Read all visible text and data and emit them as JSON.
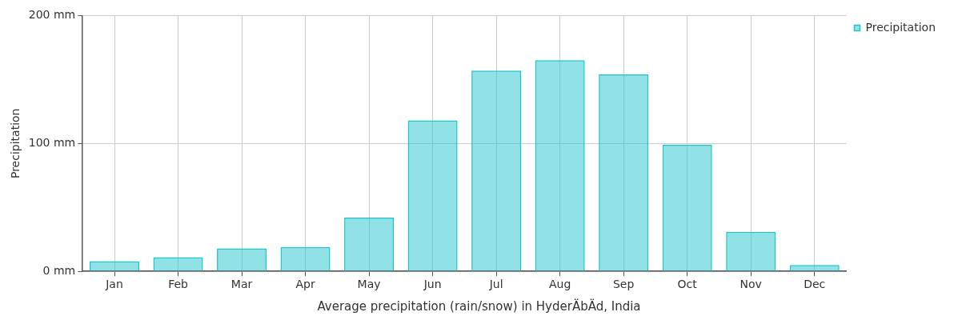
{
  "chart_data": {
    "type": "bar",
    "ylabel": "Precipitation",
    "categories": [
      "Jan",
      "Feb",
      "Mar",
      "Apr",
      "May",
      "Jun",
      "Jul",
      "Aug",
      "Sep",
      "Oct",
      "Nov",
      "Dec"
    ],
    "series": [
      {
        "name": "Precipitation",
        "color": "#20c4cc",
        "values": [
          8,
          11,
          18,
          19,
          42,
          118,
          157,
          165,
          154,
          99,
          31,
          5
        ]
      }
    ],
    "ylim": [
      0,
      200
    ],
    "yticks": [
      {
        "value": 0,
        "label": "0 mm"
      },
      {
        "value": 100,
        "label": "100 mm"
      },
      {
        "value": 200,
        "label": "200 mm"
      }
    ],
    "grid": true,
    "legend": "top right",
    "annotations": [
      "Average precipitation (rain/snow) in HyderÄbÄd, India"
    ]
  }
}
